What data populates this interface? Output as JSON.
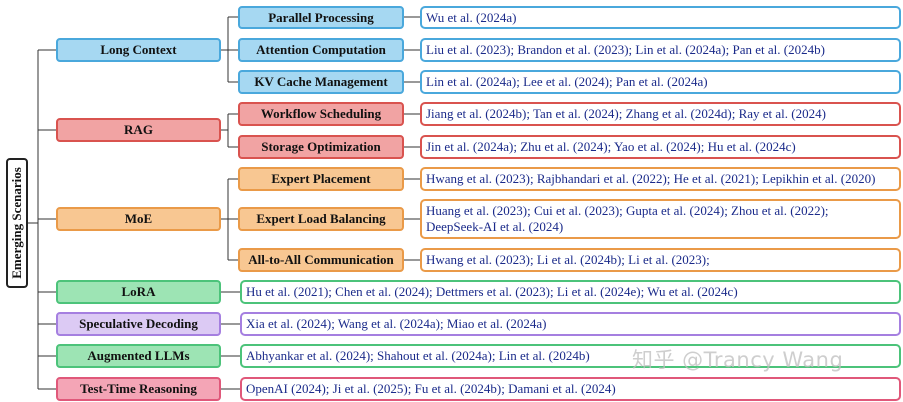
{
  "root": {
    "label": "Emerging Scenarios"
  },
  "categories": {
    "long_context": {
      "label": "Long Context",
      "parallel": {
        "label": "Parallel Processing",
        "refs": "Wu et al. (2024a)"
      },
      "attention": {
        "label": "Attention Computation",
        "refs": "Liu et al. (2023); Brandon et al. (2023); Lin et al. (2024a); Pan et al. (2024b)"
      },
      "kv_cache": {
        "label": "KV Cache Management",
        "refs": "Lin et al. (2024a); Lee et al. (2024); Pan et al. (2024a)"
      }
    },
    "rag": {
      "label": "RAG",
      "workflow": {
        "label": "Workflow Scheduling",
        "refs": "Jiang et al. (2024b); Tan et al. (2024); Zhang et al. (2024d); Ray et al. (2024)"
      },
      "storage": {
        "label": "Storage Optimization",
        "refs": "Jin et al. (2024a); Zhu et al. (2024); Yao et al. (2024); Hu et al. (2024c)"
      }
    },
    "moe": {
      "label": "MoE",
      "placement": {
        "label": "Expert Placement",
        "refs": "Hwang et al. (2023); Rajbhandari et al. (2022); He et al. (2021); Lepikhin et al. (2020)"
      },
      "load_balancing": {
        "label": "Expert Load Balancing",
        "refs_line1": "Huang et al. (2023); Cui et al. (2023); Gupta et al. (2024); Zhou et al. (2022);",
        "refs_line2": "DeepSeek-AI et al. (2024)"
      },
      "all_to_all": {
        "label": "All-to-All Communication",
        "refs": "Hwang et al. (2023); Li et al. (2024b); Li et al. (2023);"
      }
    },
    "lora": {
      "label": "LoRA",
      "refs": "Hu et al. (2021); Chen et al. (2024); Dettmers et al. (2023); Li et al. (2024e); Wu et al. (2024c)"
    },
    "speculative": {
      "label": "Speculative Decoding",
      "refs": "Xia et al. (2024); Wang et al. (2024a); Miao et al. (2024a)"
    },
    "augmented": {
      "label": "Augmented LLMs",
      "refs": "Abhyankar et al. (2024); Shahout et al. (2024a); Lin et al. (2024b)"
    },
    "test_time": {
      "label": "Test-Time Reasoning",
      "refs": "OpenAI (2024); Ji et al. (2025); Fu et al. (2024b); Damani et al. (2024)"
    }
  },
  "watermark": "知乎 @Trancy Wang",
  "colors": {
    "long_context": "#4aa8dc",
    "rag": "#d9534f",
    "moe": "#ea9a48",
    "lora": "#4cc37a",
    "speculative": "#a57fe0",
    "augmented": "#4cc37a",
    "test_time": "#e0587a"
  }
}
